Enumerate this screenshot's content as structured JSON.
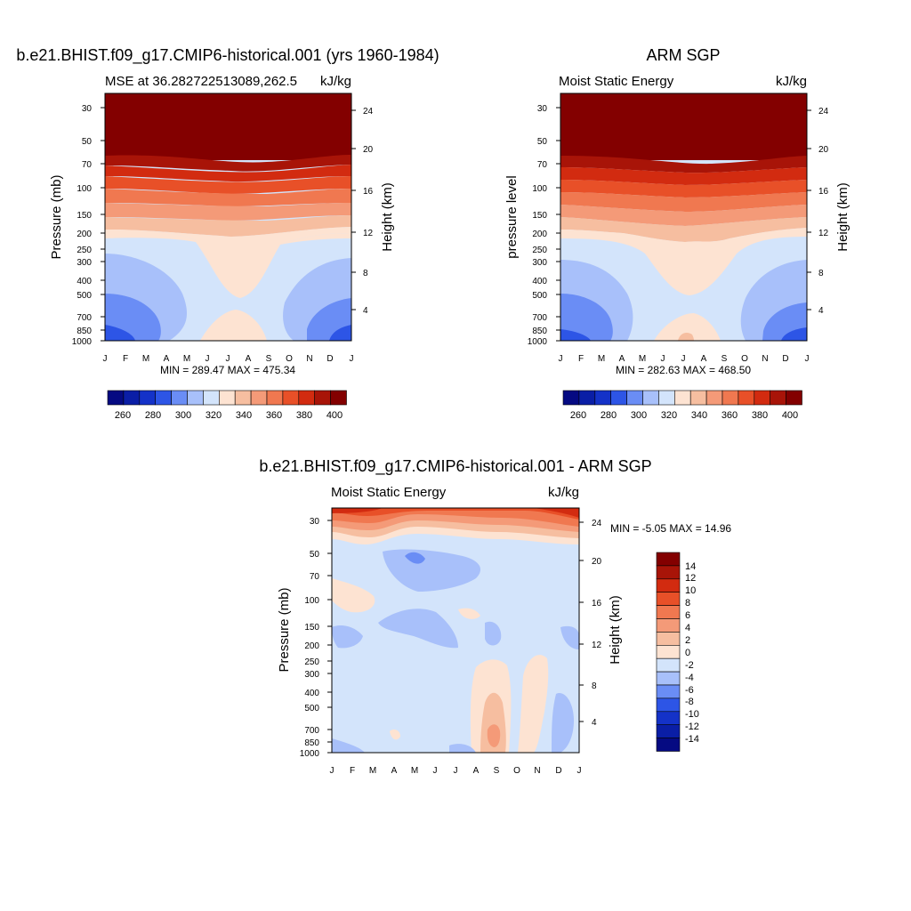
{
  "colors": {
    "mse_levels": [
      "#050a82",
      "#0a1ea6",
      "#1432c8",
      "#2d55e6",
      "#6a8df5",
      "#a8c0fa",
      "#d3e4fb",
      "#fde3d2",
      "#f6bea0",
      "#f49a78",
      "#f07850",
      "#e85028",
      "#d22b10",
      "#a81408",
      "#830000"
    ],
    "diff_levels": [
      "#050a82",
      "#0a1ea6",
      "#1432c8",
      "#2d55e6",
      "#6a8df5",
      "#a8c0fa",
      "#d3e4fb",
      "#fde3d2",
      "#f6bea0",
      "#f49a78",
      "#f07850",
      "#e85028",
      "#d22b10",
      "#a81408",
      "#830000"
    ]
  },
  "chart_data": [
    {
      "type": "heatmap",
      "title": "b.e21.BHIST.f09_g17.CMIP6-historical.001 (yrs 1960-1984)",
      "left_string": "MSE at 36.282722513089,262.5",
      "right_string": "kJ/kg",
      "xlabel": "",
      "ylabel": "Pressure (mb)",
      "ylabel_right": "Height (km)",
      "x_ticks": [
        "J",
        "F",
        "M",
        "A",
        "M",
        "J",
        "J",
        "A",
        "S",
        "O",
        "N",
        "D",
        "J"
      ],
      "y_ticks": [
        "30",
        "50",
        "70",
        "100",
        "150",
        "200",
        "250",
        "300",
        "400",
        "500",
        "700",
        "850",
        "1000"
      ],
      "y_right_ticks": [
        "24",
        "20",
        "16",
        "12",
        "8",
        "4"
      ],
      "stats": "MIN = 289.47 MAX = 475.34",
      "colorbar_labels": [
        "260",
        "280",
        "300",
        "320",
        "340",
        "360",
        "380",
        "400"
      ],
      "units": "kJ/kg"
    },
    {
      "type": "heatmap",
      "title": "ARM SGP",
      "left_string": "Moist Static Energy",
      "right_string": "kJ/kg",
      "xlabel": "",
      "ylabel": "pressure level",
      "ylabel_right": "Height (km)",
      "x_ticks": [
        "J",
        "F",
        "M",
        "A",
        "M",
        "J",
        "J",
        "A",
        "S",
        "O",
        "N",
        "D",
        "J"
      ],
      "y_ticks": [
        "30",
        "50",
        "70",
        "100",
        "150",
        "200",
        "250",
        "300",
        "400",
        "500",
        "700",
        "850",
        "1000"
      ],
      "y_right_ticks": [
        "24",
        "20",
        "16",
        "12",
        "8",
        "4"
      ],
      "stats": "MIN = 282.63 MAX = 468.50",
      "colorbar_labels": [
        "260",
        "280",
        "300",
        "320",
        "340",
        "360",
        "380",
        "400"
      ],
      "units": "kJ/kg"
    },
    {
      "type": "heatmap",
      "title": "b.e21.BHIST.f09_g17.CMIP6-historical.001 - ARM SGP",
      "left_string": "Moist Static Energy",
      "right_string": "kJ/kg",
      "xlabel": "",
      "ylabel": "Pressure (mb)",
      "ylabel_right": "Height (km)",
      "x_ticks": [
        "J",
        "F",
        "M",
        "A",
        "M",
        "J",
        "J",
        "A",
        "S",
        "O",
        "N",
        "D",
        "J"
      ],
      "y_ticks": [
        "30",
        "50",
        "70",
        "100",
        "150",
        "200",
        "250",
        "300",
        "400",
        "500",
        "700",
        "850",
        "1000"
      ],
      "y_right_ticks": [
        "24",
        "20",
        "16",
        "12",
        "8",
        "4"
      ],
      "stats": "MIN =  -5.05 MAX =  14.96",
      "colorbar_labels": [
        "14",
        "12",
        "10",
        "8",
        "6",
        "4",
        "2",
        "0",
        "-2",
        "-4",
        "-6",
        "-8",
        "-10",
        "-12",
        "-14"
      ],
      "units": "kJ/kg"
    }
  ]
}
